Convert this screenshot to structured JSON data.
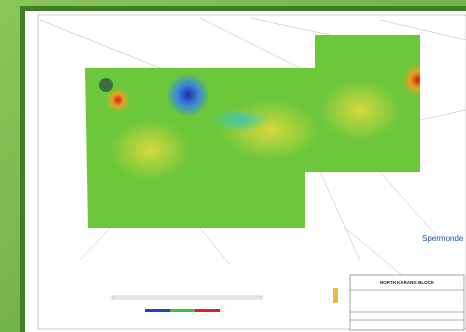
{
  "title_block": {
    "title": "NORTH KARANG BLOCK"
  },
  "map": {
    "label": "Spermonde"
  }
}
